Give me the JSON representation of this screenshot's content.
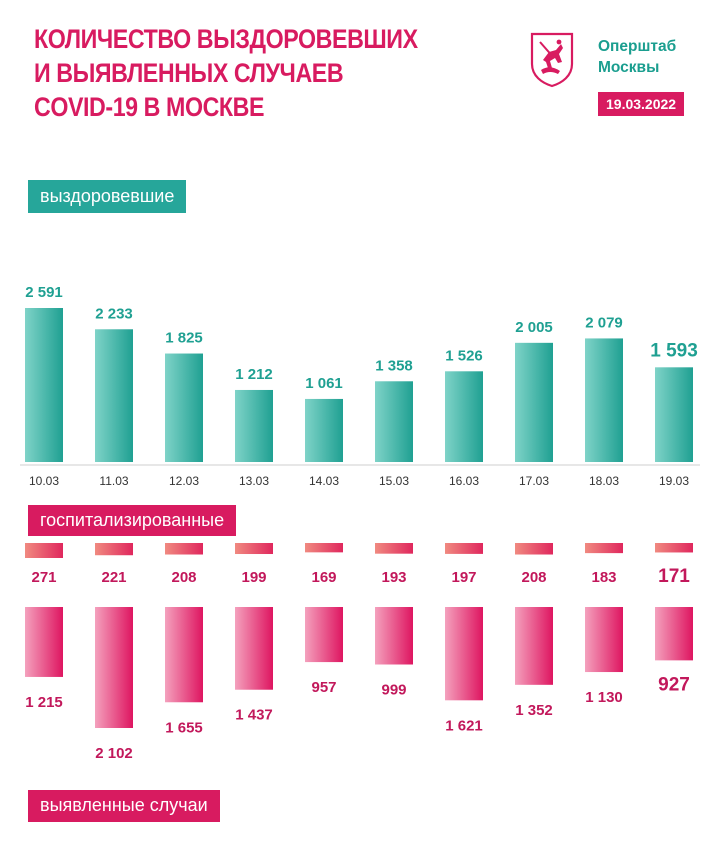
{
  "header": {
    "title_lines": [
      "Количество выздоровевших",
      "и выявленных случаев",
      "COVID-19 в Москве"
    ],
    "org_lines": [
      "Оперштаб",
      "Москвы"
    ],
    "date": "19.03.2022",
    "logo_icon": "moscow-coat-of-arms-icon"
  },
  "labels": {
    "recovered": "выздоровевшие",
    "hospitalized": "госпитализированные",
    "cases": "выявленные случаи"
  },
  "colors": {
    "teal": "#26a69a",
    "pink": "#d81b60",
    "teal_gradient": [
      "#7fd3c8",
      "#1fa092"
    ],
    "hosp_gradient": [
      "#f08a80",
      "#e0275d"
    ],
    "cases_gradient": [
      "#f4a1bd",
      "#de1560"
    ]
  },
  "chart_data": {
    "type": "bar",
    "categories": [
      "10.03",
      "11.03",
      "12.03",
      "13.03",
      "14.03",
      "15.03",
      "16.03",
      "17.03",
      "18.03",
      "19.03"
    ],
    "series": [
      {
        "name": "выздоровевшие",
        "values": [
          2591,
          2233,
          1825,
          1212,
          1061,
          1358,
          1526,
          2005,
          2079,
          1593
        ],
        "value_labels": [
          "2 591",
          "2 233",
          "1 825",
          "1 212",
          "1 061",
          "1 358",
          "1 526",
          "2 005",
          "2 079",
          "1 593"
        ]
      },
      {
        "name": "госпитализированные",
        "values": [
          271,
          221,
          208,
          199,
          169,
          193,
          197,
          208,
          183,
          171
        ],
        "value_labels": [
          "271",
          "221",
          "208",
          "199",
          "169",
          "193",
          "197",
          "208",
          "183",
          "171"
        ]
      },
      {
        "name": "выявленные случаи",
        "values": [
          1215,
          2102,
          1655,
          1437,
          957,
          999,
          1621,
          1352,
          1130,
          927
        ],
        "value_labels": [
          "1 215",
          "2 102",
          "1 655",
          "1 437",
          "957",
          "999",
          "1 621",
          "1 352",
          "1 130",
          "927"
        ]
      }
    ]
  }
}
